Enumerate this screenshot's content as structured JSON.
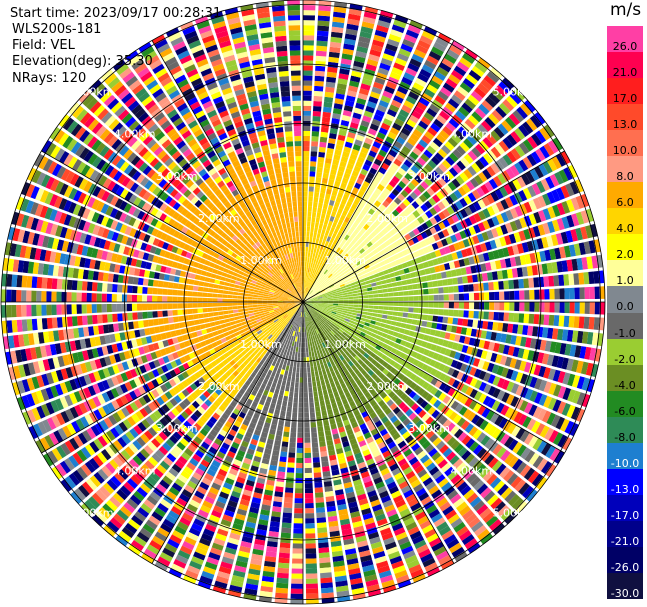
{
  "header": {
    "start_time": "Start time: 2023/09/17 00:28:31",
    "instrument": "WLS200s-181",
    "field": "Field: VEL",
    "elevation": "Elevation(deg): 35.30",
    "nrays": "NRays: 120"
  },
  "colorbar": {
    "unit": "m/s",
    "labels": [
      "26.0",
      "21.0",
      "17.0",
      "13.0",
      "10.0",
      "8.0",
      "6.0",
      "4.0",
      "2.0",
      "1.0",
      "0.0",
      "-1.0",
      "-2.0",
      "-4.0",
      "-6.0",
      "-8.0",
      "-10.0",
      "-13.0",
      "-17.0",
      "-21.0",
      "-26.0",
      "-30.0"
    ],
    "colors": [
      "#ff3fa5",
      "#ff0050",
      "#ff1e1e",
      "#ff4a2a",
      "#ff6f50",
      "#ff9a82",
      "#ffaa00",
      "#ffd500",
      "#ffff00",
      "#ffff99",
      "#808890",
      "#696969",
      "#9acd32",
      "#6b8e23",
      "#228b22",
      "#2e8b57",
      "#1e7fd0",
      "#0000ff",
      "#0000bb",
      "#00008b",
      "#000066",
      "#101040"
    ]
  },
  "rings": {
    "labels": [
      "1.00km",
      "2.00km",
      "3.00km",
      "4.00km",
      "5.00km"
    ]
  },
  "chart_data": {
    "type": "heatmap",
    "subtype": "polar-ppi",
    "title": "",
    "field": "VEL",
    "unit": "m/s",
    "nrays": 120,
    "elevation_deg": 35.3,
    "range_rings_km": [
      1,
      2,
      3,
      4,
      5
    ],
    "colorbar_ticks": [
      26.0,
      21.0,
      17.0,
      13.0,
      10.0,
      8.0,
      6.0,
      4.0,
      2.0,
      1.0,
      0.0,
      -1.0,
      -2.0,
      -4.0,
      -6.0,
      -8.0,
      -10.0,
      -13.0,
      -17.0,
      -21.0,
      -26.0,
      -30.0
    ],
    "signal_range_km": 2.4,
    "sectors": [
      {
        "azimuth_from": 240,
        "azimuth_to": 360,
        "velocity": 4.0
      },
      {
        "azimuth_from": 0,
        "azimuth_to": 30,
        "velocity": 2.0
      },
      {
        "azimuth_from": 30,
        "azimuth_to": 70,
        "velocity": 0.0
      },
      {
        "azimuth_from": 70,
        "azimuth_to": 125,
        "velocity": -4.0
      },
      {
        "azimuth_from": 125,
        "azimuth_to": 175,
        "velocity": -6.0
      },
      {
        "azimuth_from": 175,
        "azimuth_to": 215,
        "velocity": -2.0
      },
      {
        "azimuth_from": 215,
        "azimuth_to": 240,
        "velocity": 2.0
      }
    ]
  }
}
